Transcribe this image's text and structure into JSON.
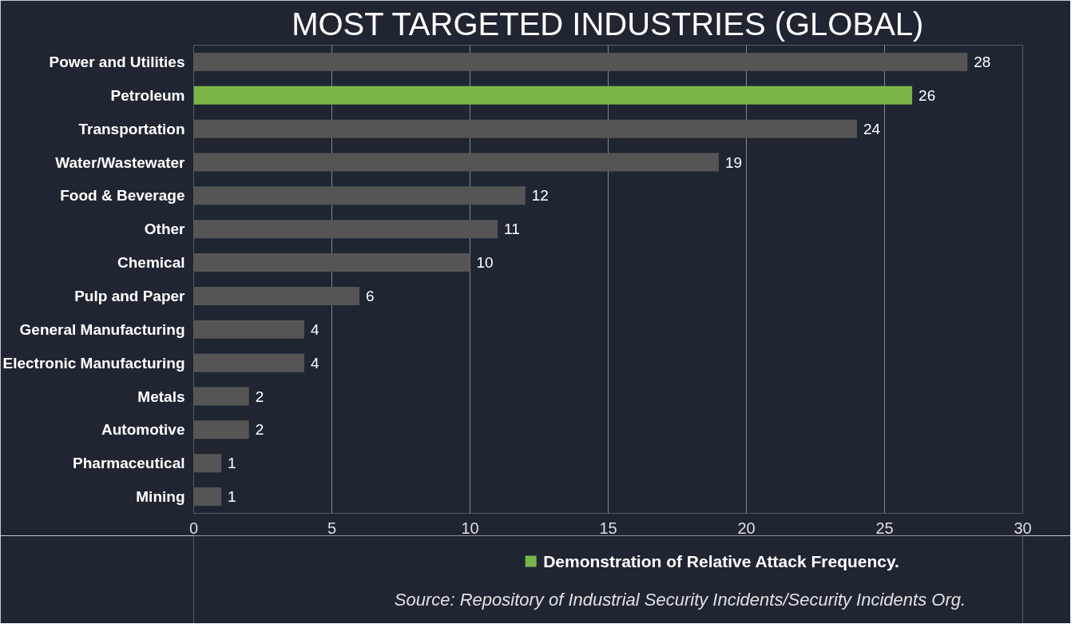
{
  "chart_data": {
    "type": "bar",
    "orientation": "horizontal",
    "title": "MOST TARGETED INDUSTRIES (GLOBAL)",
    "categories": [
      "Power and Utilities",
      "Petroleum",
      "Transportation",
      "Water/Wastewater",
      "Food & Beverage",
      "Other",
      "Chemical",
      "Pulp and Paper",
      "General Manufacturing",
      "Electronic Manufacturing",
      "Metals",
      "Automotive",
      "Pharmaceutical",
      "Mining"
    ],
    "series": [
      {
        "name": "Demonstration of Relative Attack Frequency.",
        "color": "#7ab648",
        "colors": [
          "#555555",
          "#7ab648",
          "#555555",
          "#555555",
          "#555555",
          "#555555",
          "#555555",
          "#555555",
          "#555555",
          "#555555",
          "#555555",
          "#555555",
          "#555555",
          "#555555"
        ],
        "values": [
          28,
          26,
          24,
          19,
          12,
          11,
          10,
          6,
          4,
          4,
          2,
          2,
          1,
          1
        ]
      }
    ],
    "xlim": [
      0,
      30
    ],
    "xticks": [
      0,
      5,
      10,
      15,
      20,
      25,
      30
    ],
    "grid": "x",
    "data_labels": true,
    "legend": "bottom",
    "annotations": [
      "Source:  Repository of Industrial Security Incidents/Security Incidents Org."
    ]
  }
}
